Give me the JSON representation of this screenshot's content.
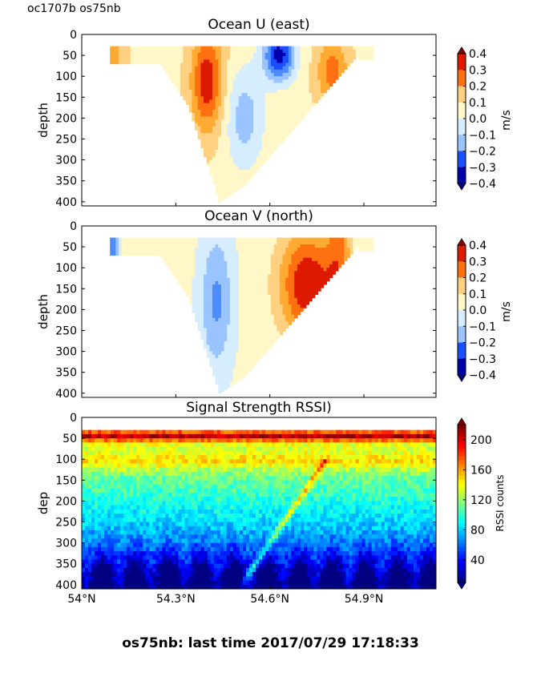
{
  "header": {
    "cruise_label": "oc1707b os75nb"
  },
  "footer": {
    "caption": "os75nb: last time 2017/07/29 17:18:33"
  },
  "colormap": [
    "#00008f",
    "#0000ff",
    "#0080ff",
    "#00ffff",
    "#80ff80",
    "#ffff00",
    "#ff8000",
    "#ff0000",
    "#800000"
  ],
  "chart_data": [
    {
      "type": "heatmap",
      "title": "Ocean U (east)",
      "ylabel": "depth",
      "ylim": [
        410,
        0
      ],
      "yticks": [
        "0",
        "50",
        "100",
        "150",
        "200",
        "250",
        "300",
        "350",
        "400"
      ],
      "colorbar": {
        "label": "m/s",
        "range": [
          -0.4,
          0.4
        ],
        "ticks": [
          "0.4",
          "0.3",
          "0.2",
          "0.1",
          "0.0",
          "−0.1",
          "−0.2",
          "−0.3",
          "−0.4"
        ],
        "colors": [
          "#0000aa",
          "#1a4fff",
          "#4d8cff",
          "#99c4ff",
          "#d6ecff",
          "#fff7c8",
          "#ffd080",
          "#ffaa33",
          "#ff7010",
          "#dd1a00"
        ]
      },
      "x_range": [
        54.0,
        55.13
      ],
      "depth_range": [
        30,
        410
      ],
      "series_note": "contoured east velocity section"
    },
    {
      "type": "heatmap",
      "title": "Ocean V (north)",
      "ylabel": "depth",
      "ylim": [
        410,
        0
      ],
      "yticks": [
        "0",
        "50",
        "100",
        "150",
        "200",
        "250",
        "300",
        "350",
        "400"
      ],
      "colorbar": {
        "label": "m/s",
        "range": [
          -0.4,
          0.4
        ],
        "ticks": [
          "0.4",
          "0.3",
          "0.2",
          "0.1",
          "0.0",
          "−0.1",
          "−0.2",
          "−0.3",
          "−0.4"
        ]
      },
      "x_range": [
        54.0,
        55.13
      ],
      "depth_range": [
        30,
        410
      ],
      "series_note": "contoured north velocity section"
    },
    {
      "type": "heatmap",
      "title": "Signal Strength RSSI)",
      "ylabel": "dep",
      "ylim": [
        410,
        0
      ],
      "yticks": [
        "0",
        "50",
        "100",
        "150",
        "200",
        "250",
        "300",
        "350",
        "400"
      ],
      "xticks": [
        "54°N",
        "54.3°N",
        "54.6°N",
        "54.9°N"
      ],
      "colorbar": {
        "label": "RSSI counts",
        "range": [
          10,
          220
        ],
        "ticks": [
          "200",
          "160",
          "120",
          "80",
          "40"
        ]
      },
      "x_range": [
        54.0,
        55.13
      ],
      "depth_range": [
        30,
        410
      ]
    }
  ]
}
